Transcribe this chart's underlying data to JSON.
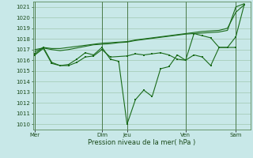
{
  "bg_color": "#c8e8e8",
  "grid_color": "#a0c8b0",
  "line_color": "#1a6b1a",
  "xlabel": "Pression niveau de la mer( hPa )",
  "ylim": [
    1009.5,
    1021.5
  ],
  "yticks": [
    1010,
    1011,
    1012,
    1013,
    1014,
    1015,
    1016,
    1017,
    1018,
    1019,
    1020,
    1021
  ],
  "day_labels": [
    "Mer",
    "Dim",
    "Jeu",
    "Ven",
    "Sam"
  ],
  "day_positions": [
    0.0,
    0.32,
    0.44,
    0.72,
    0.96
  ],
  "series1_x": [
    0.0,
    0.04,
    0.08,
    0.12,
    0.16,
    0.2,
    0.24,
    0.28,
    0.32,
    0.36,
    0.4,
    0.44,
    0.48,
    0.52,
    0.56,
    0.6,
    0.64,
    0.68,
    0.72,
    0.76,
    0.8,
    0.84,
    0.88,
    0.92,
    0.96,
    1.0
  ],
  "series1_y": [
    1016.8,
    1017.2,
    1017.1,
    1017.1,
    1017.2,
    1017.3,
    1017.4,
    1017.5,
    1017.6,
    1017.65,
    1017.7,
    1017.75,
    1017.9,
    1018.0,
    1018.1,
    1018.2,
    1018.3,
    1018.4,
    1018.5,
    1018.6,
    1018.7,
    1018.75,
    1018.8,
    1019.0,
    1020.5,
    1021.2
  ],
  "series2_x": [
    0.0,
    0.04,
    0.08,
    0.12,
    0.16,
    0.2,
    0.24,
    0.28,
    0.32,
    0.36,
    0.4,
    0.44,
    0.48,
    0.52,
    0.56,
    0.6,
    0.64,
    0.68,
    0.72,
    0.76,
    0.8,
    0.84,
    0.88,
    0.92,
    0.96,
    1.0
  ],
  "series2_y": [
    1017.0,
    1017.15,
    1017.0,
    1016.9,
    1017.0,
    1017.15,
    1017.3,
    1017.45,
    1017.5,
    1017.55,
    1017.65,
    1017.7,
    1017.85,
    1017.95,
    1018.05,
    1018.15,
    1018.25,
    1018.35,
    1018.45,
    1018.5,
    1018.55,
    1018.6,
    1018.65,
    1018.8,
    1021.0,
    1021.3
  ],
  "series3_x": [
    0.0,
    0.04,
    0.08,
    0.12,
    0.16,
    0.2,
    0.24,
    0.28,
    0.32,
    0.36,
    0.44,
    0.48,
    0.52,
    0.56,
    0.6,
    0.64,
    0.68,
    0.72,
    0.76,
    0.8,
    0.84,
    0.88,
    0.92,
    0.96,
    1.0
  ],
  "series3_y": [
    1016.6,
    1017.2,
    1015.8,
    1015.5,
    1015.5,
    1015.8,
    1016.3,
    1016.4,
    1017.0,
    1016.3,
    1016.4,
    1016.6,
    1016.5,
    1016.6,
    1016.7,
    1016.5,
    1016.1,
    1016.0,
    1018.5,
    1018.3,
    1018.1,
    1017.2,
    1017.2,
    1018.2,
    1021.2
  ],
  "series4_x": [
    0.0,
    0.04,
    0.08,
    0.12,
    0.16,
    0.2,
    0.24,
    0.28,
    0.32,
    0.36,
    0.4,
    0.44,
    0.48,
    0.52,
    0.56,
    0.6,
    0.64,
    0.68,
    0.72,
    0.76,
    0.8,
    0.84,
    0.88,
    0.92,
    0.96
  ],
  "series4_y": [
    1016.5,
    1017.1,
    1015.7,
    1015.5,
    1015.6,
    1016.1,
    1016.7,
    1016.5,
    1017.2,
    1016.1,
    1015.9,
    1010.0,
    1012.3,
    1013.2,
    1012.6,
    1015.2,
    1015.4,
    1016.5,
    1016.0,
    1016.5,
    1016.3,
    1015.5,
    1017.2,
    1017.2,
    1017.2
  ]
}
